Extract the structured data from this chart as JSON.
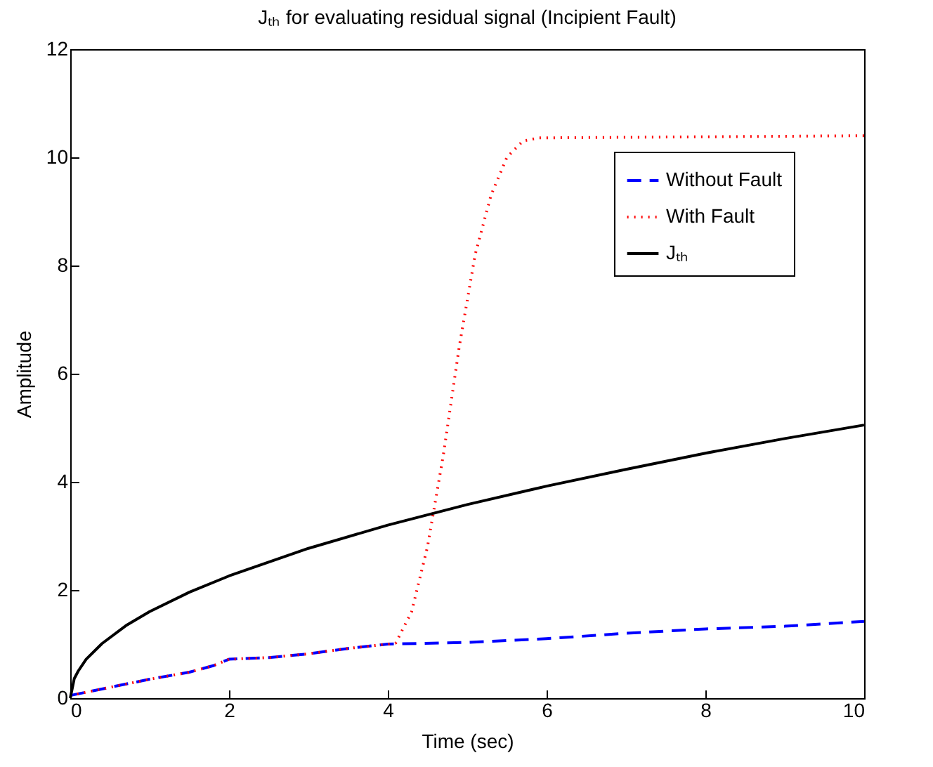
{
  "chart_data": {
    "type": "line",
    "title": "Jₜₕ for evaluating residual signal (Incipient Fault)",
    "xlabel": "Time (sec)",
    "ylabel": "Amplitude",
    "xlim": [
      0,
      10
    ],
    "xticks": [
      0,
      2,
      4,
      6,
      8,
      10
    ],
    "ylim": [
      0,
      12
    ],
    "yticks": [
      0,
      2,
      4,
      6,
      8,
      10,
      12
    ],
    "grid": false,
    "legend": "top right",
    "series": [
      {
        "name": "Without Fault",
        "color": "#0000ff",
        "line_style": "dashed",
        "x": [
          0,
          0.5,
          1,
          1.5,
          1.8,
          2,
          2.5,
          3,
          3.5,
          4,
          5,
          6,
          7,
          8,
          9,
          10
        ],
        "values": [
          0.05,
          0.2,
          0.35,
          0.48,
          0.6,
          0.72,
          0.75,
          0.82,
          0.92,
          1.0,
          1.03,
          1.1,
          1.2,
          1.28,
          1.33,
          1.42
        ]
      },
      {
        "name": "With Fault",
        "color": "#ff0000",
        "line_style": "dotted",
        "x": [
          0,
          0.5,
          1,
          1.5,
          1.8,
          2,
          2.5,
          3,
          3.5,
          4,
          4.1,
          4.3,
          4.5,
          4.7,
          4.9,
          5.1,
          5.3,
          5.5,
          5.7,
          5.9,
          7,
          8,
          10
        ],
        "values": [
          0.05,
          0.2,
          0.35,
          0.48,
          0.6,
          0.72,
          0.75,
          0.82,
          0.92,
          1.0,
          1.02,
          1.6,
          2.8,
          4.5,
          6.5,
          8.2,
          9.3,
          10.0,
          10.3,
          10.36,
          10.37,
          10.38,
          10.4
        ]
      },
      {
        "name": "Jₜₕ",
        "color": "#000000",
        "line_style": "solid",
        "x": [
          0,
          0.05,
          0.1,
          0.2,
          0.4,
          0.7,
          1,
          1.5,
          2,
          3,
          4,
          5,
          6,
          7,
          8,
          9,
          10
        ],
        "values": [
          0,
          0.36,
          0.5,
          0.72,
          1.01,
          1.34,
          1.6,
          1.96,
          2.26,
          2.77,
          3.2,
          3.58,
          3.92,
          4.23,
          4.53,
          4.8,
          5.05
        ]
      }
    ]
  }
}
